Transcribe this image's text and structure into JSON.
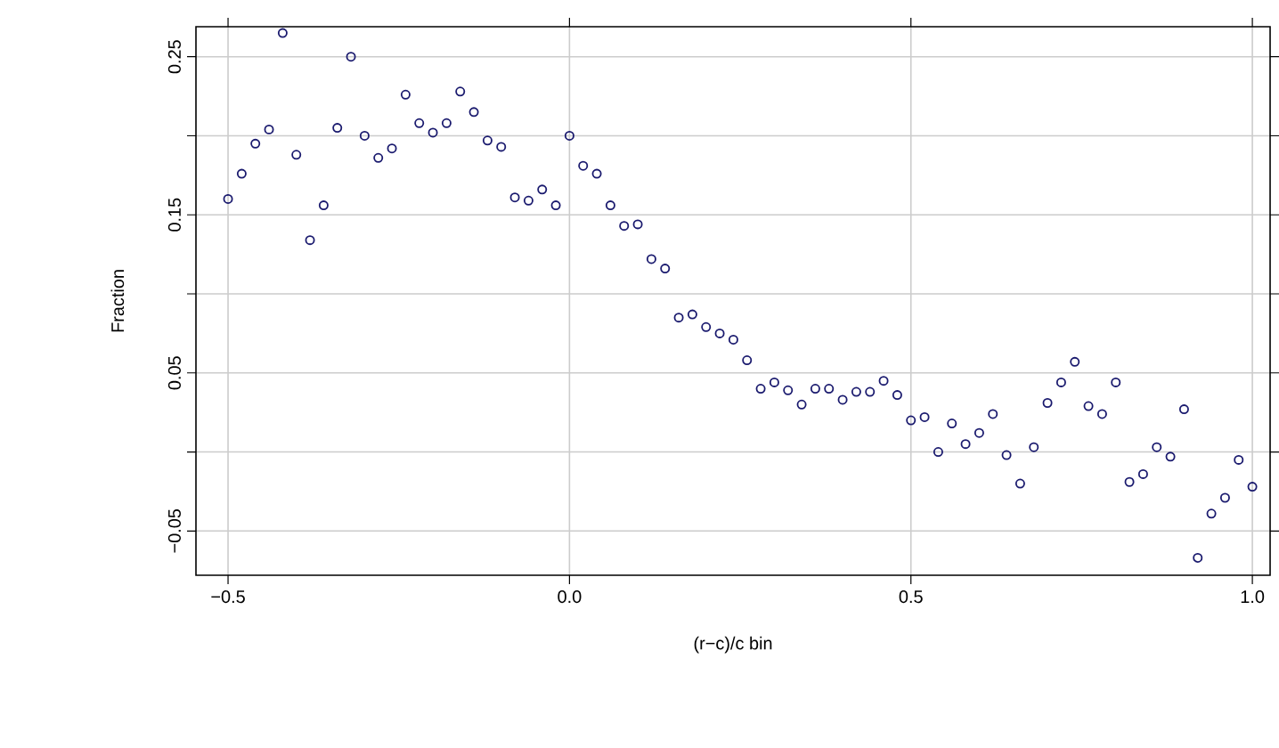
{
  "chart_data": {
    "type": "scatter",
    "xlabel": "(r−c)/c bin",
    "ylabel": "Fraction",
    "x": [
      -0.5,
      -0.48,
      -0.46,
      -0.44,
      -0.42,
      -0.4,
      -0.38,
      -0.36,
      -0.34,
      -0.32,
      -0.3,
      -0.28,
      -0.26,
      -0.24,
      -0.22,
      -0.2,
      -0.18,
      -0.16,
      -0.14,
      -0.12,
      -0.1,
      -0.08,
      -0.06,
      -0.04,
      -0.02,
      0.0,
      0.02,
      0.04,
      0.06,
      0.08,
      0.1,
      0.12,
      0.14,
      0.16,
      0.18,
      0.2,
      0.22,
      0.24,
      0.26,
      0.28,
      0.3,
      0.32,
      0.34,
      0.36,
      0.38,
      0.4,
      0.42,
      0.44,
      0.46,
      0.48,
      0.5,
      0.52,
      0.54,
      0.56,
      0.58,
      0.6,
      0.62,
      0.64,
      0.66,
      0.68,
      0.7,
      0.72,
      0.74,
      0.76,
      0.78,
      0.8,
      0.82,
      0.84,
      0.86,
      0.88,
      0.9,
      0.92,
      0.94,
      0.96,
      0.98,
      1.0
    ],
    "series": [
      {
        "color": "#1a1a6e",
        "values": [
          0.16,
          0.176,
          0.195,
          0.204,
          0.265,
          0.188,
          0.134,
          0.156,
          0.205,
          0.25,
          0.2,
          0.186,
          0.192,
          0.226,
          0.208,
          0.202,
          0.208,
          0.228,
          0.215,
          0.197,
          0.193,
          0.161,
          0.159,
          0.166,
          0.156,
          0.2,
          0.181,
          0.176,
          0.156,
          0.143,
          0.144,
          0.122,
          0.116,
          0.085,
          0.087,
          0.079,
          0.075,
          0.071,
          0.058,
          0.04,
          0.044,
          0.039,
          0.03,
          0.04,
          0.04,
          0.033,
          0.038,
          0.038,
          0.045,
          0.036,
          0.02,
          0.022,
          0.0,
          0.018,
          0.005,
          0.012,
          0.024,
          -0.002,
          -0.02,
          0.003,
          0.031,
          0.044,
          0.057,
          0.029,
          0.024,
          0.044,
          -0.019,
          -0.014,
          0.003,
          -0.003,
          0.027,
          -0.067,
          -0.039,
          -0.029,
          -0.005,
          -0.022
        ]
      }
    ],
    "marker": "circle",
    "grid": true,
    "xlim": [
      -0.547,
      1.026
    ],
    "ylim": [
      -0.078,
      0.269
    ],
    "xticks": [
      {
        "value": -0.5,
        "label": "−0.5"
      },
      {
        "value": 0,
        "label": "0.0"
      },
      {
        "value": 0.5,
        "label": "0.5"
      },
      {
        "value": 1,
        "label": "1.0"
      }
    ],
    "yticks": [
      {
        "value": -0.05,
        "label": "−0.05"
      },
      {
        "value": 0,
        "label": null
      },
      {
        "value": 0.05,
        "label": "0.05"
      },
      {
        "value": 0.1,
        "label": null
      },
      {
        "value": 0.15,
        "label": "0.15"
      },
      {
        "value": 0.2,
        "label": null
      },
      {
        "value": 0.25,
        "label": "0.25"
      }
    ]
  }
}
